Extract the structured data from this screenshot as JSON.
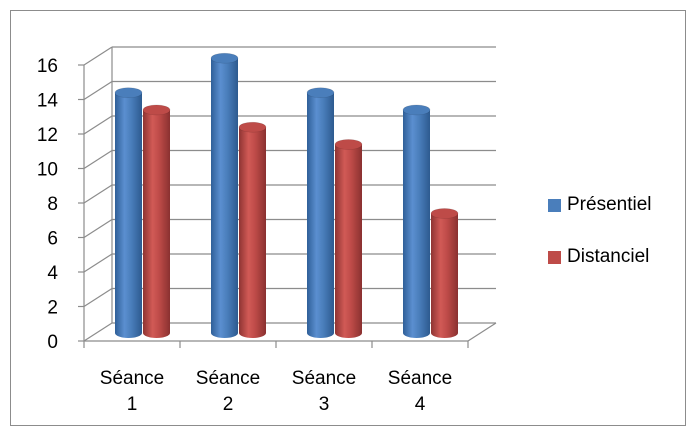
{
  "chart_data": {
    "type": "bar",
    "categories": [
      [
        "Séance",
        "1"
      ],
      [
        "Séance",
        "2"
      ],
      [
        "Séance",
        "3"
      ],
      [
        "Séance",
        "4"
      ]
    ],
    "series": [
      {
        "name": "Présentiel",
        "values": [
          14,
          16,
          14,
          13
        ],
        "color": "#4a7ebb"
      },
      {
        "name": "Distanciel",
        "values": [
          13,
          12,
          11,
          7
        ],
        "color": "#be4b48"
      }
    ],
    "ylim": [
      0,
      16
    ],
    "yticks": [
      0,
      2,
      4,
      6,
      8,
      10,
      12,
      14,
      16
    ],
    "grid": true,
    "three_d": true,
    "legend_position": "right"
  }
}
